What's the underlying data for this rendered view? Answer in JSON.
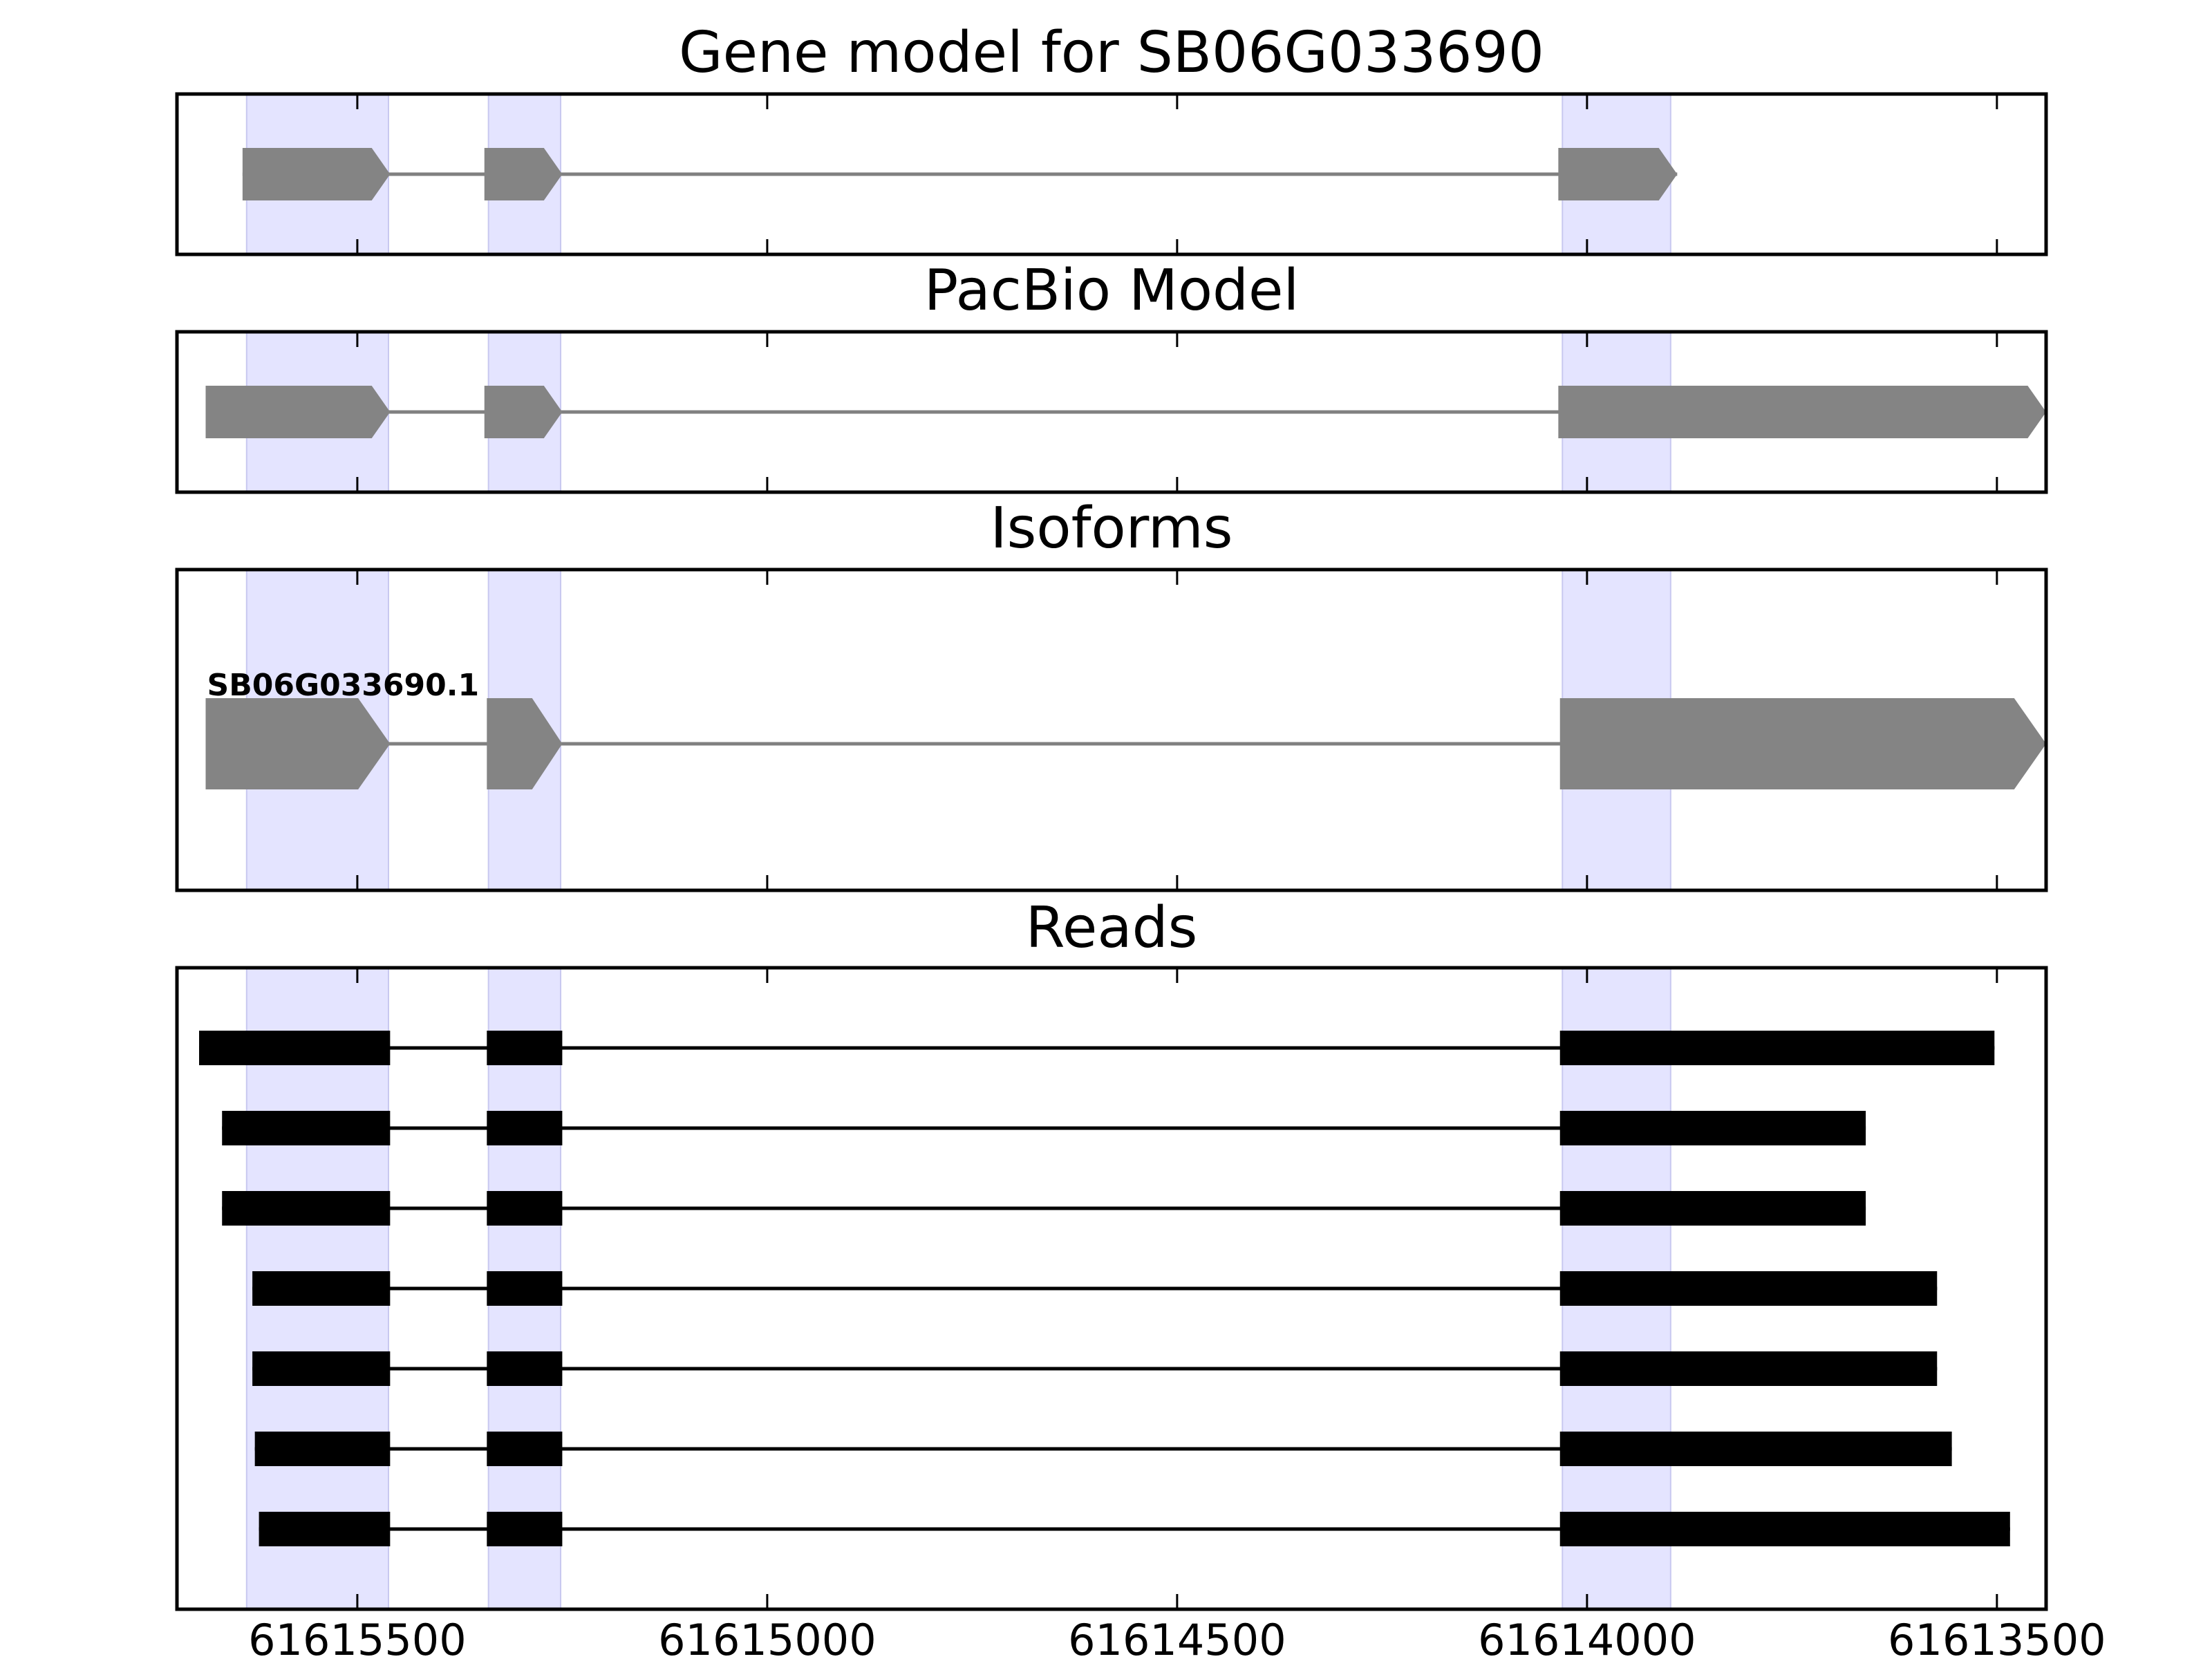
{
  "chart_data": {
    "type": "gene-structure",
    "x_axis": {
      "reversed": true,
      "range": [
        61615720,
        61613440
      ],
      "ticks": [
        61615500,
        61615000,
        61614500,
        61614000,
        61613500
      ],
      "tick_labels": [
        "61615500",
        "61615000",
        "61614500",
        "61614000",
        "61613500"
      ]
    },
    "highlight_regions": [
      [
        61615635,
        61615462
      ],
      [
        61615340,
        61615252
      ],
      [
        61614030,
        61613898
      ]
    ],
    "panels": [
      {
        "id": "gene-model",
        "title": "Gene model for SB06G033690",
        "style": "gray-arrow",
        "tracks": [
          {
            "label": "",
            "exons": [
              [
                61615640,
                61615460
              ],
              [
                61615345,
                61615250
              ],
              [
                61614035,
                61613890
              ]
            ]
          }
        ]
      },
      {
        "id": "pacbio-model",
        "title": "PacBio Model",
        "style": "gray-arrow",
        "tracks": [
          {
            "label": "",
            "exons": [
              [
                61615685,
                61615460
              ],
              [
                61615345,
                61615250
              ],
              [
                61614035,
                61613440
              ]
            ]
          }
        ]
      },
      {
        "id": "isoforms",
        "title": "Isoforms",
        "style": "gray-arrow-large",
        "tracks": [
          {
            "label": "SB06G033690.1",
            "exons": [
              [
                61615685,
                61615460
              ],
              [
                61615342,
                61615250
              ],
              [
                61614033,
                61613440
              ]
            ]
          }
        ]
      },
      {
        "id": "reads",
        "title": "Reads",
        "style": "black-block",
        "tracks": [
          {
            "label": "",
            "exons": [
              [
                61615693,
                61615460
              ],
              [
                61615342,
                61615250
              ],
              [
                61614033,
                61613503
              ]
            ]
          },
          {
            "label": "",
            "exons": [
              [
                61615665,
                61615460
              ],
              [
                61615342,
                61615250
              ],
              [
                61614033,
                61613660
              ]
            ]
          },
          {
            "label": "",
            "exons": [
              [
                61615665,
                61615460
              ],
              [
                61615342,
                61615250
              ],
              [
                61614033,
                61613660
              ]
            ]
          },
          {
            "label": "",
            "exons": [
              [
                61615628,
                61615460
              ],
              [
                61615342,
                61615250
              ],
              [
                61614033,
                61613573
              ]
            ]
          },
          {
            "label": "",
            "exons": [
              [
                61615628,
                61615460
              ],
              [
                61615342,
                61615250
              ],
              [
                61614033,
                61613573
              ]
            ]
          },
          {
            "label": "",
            "exons": [
              [
                61615625,
                61615460
              ],
              [
                61615342,
                61615250
              ],
              [
                61614033,
                61613555
              ]
            ]
          },
          {
            "label": "",
            "exons": [
              [
                61615620,
                61615460
              ],
              [
                61615342,
                61615250
              ],
              [
                61614033,
                61613484
              ]
            ]
          }
        ]
      }
    ]
  }
}
